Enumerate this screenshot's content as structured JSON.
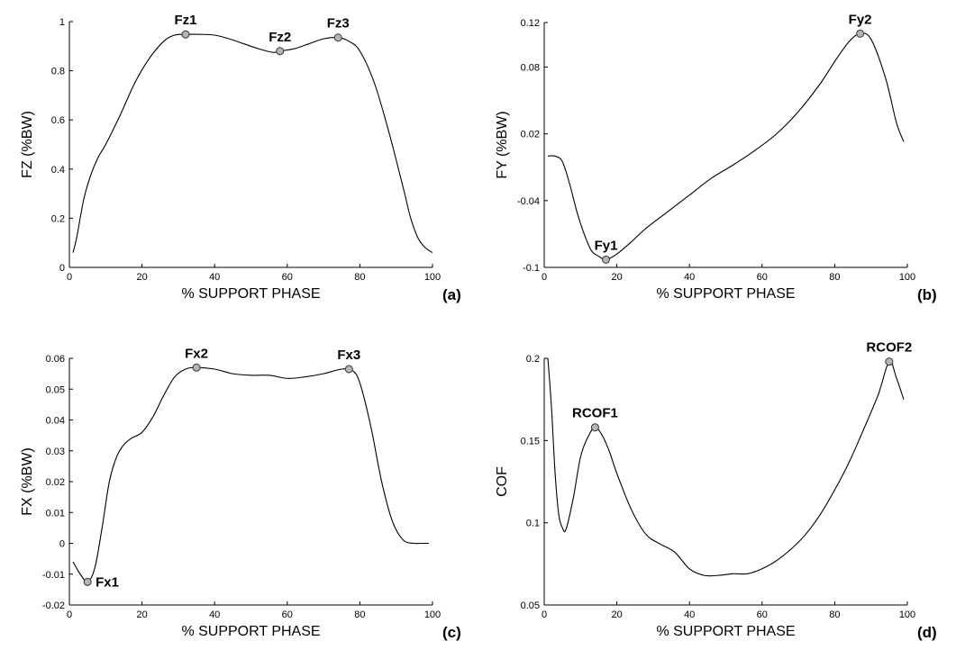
{
  "chart_data": [
    {
      "type": "line",
      "panel": "(a)",
      "xlabel": "% SUPPORT PHASE",
      "ylabel": "FZ (%BW)",
      "xlim": [
        0,
        100
      ],
      "ylim": [
        0,
        1
      ],
      "xticks": [
        0,
        20,
        40,
        60,
        80,
        100
      ],
      "yticks": [
        0,
        0.2,
        0.4,
        0.6,
        0.8,
        1
      ],
      "ytick_labels": [
        "0",
        "0.2",
        "0.4",
        "0.6",
        "0.8",
        "1"
      ],
      "x": [
        1,
        2,
        4,
        6,
        8,
        10,
        14,
        18,
        22,
        26,
        29,
        32,
        36,
        40,
        44,
        48,
        52,
        56,
        58,
        62,
        66,
        70,
        74,
        77,
        80,
        84,
        88,
        92,
        94,
        96,
        98,
        100
      ],
      "y": [
        0.06,
        0.12,
        0.28,
        0.38,
        0.45,
        0.5,
        0.62,
        0.75,
        0.85,
        0.92,
        0.945,
        0.948,
        0.948,
        0.945,
        0.93,
        0.91,
        0.89,
        0.875,
        0.88,
        0.89,
        0.91,
        0.93,
        0.935,
        0.92,
        0.88,
        0.75,
        0.55,
        0.32,
        0.2,
        0.12,
        0.08,
        0.06
      ],
      "annotations": [
        {
          "label": "Fz1",
          "x": 32,
          "y": 0.948,
          "pos": "above"
        },
        {
          "label": "Fz2",
          "x": 58,
          "y": 0.88,
          "pos": "above"
        },
        {
          "label": "Fz3",
          "x": 74,
          "y": 0.935,
          "pos": "above"
        }
      ],
      "grid": false
    },
    {
      "type": "line",
      "panel": "(b)",
      "xlabel": "% SUPPORT PHASE",
      "ylabel": "FY (%BW)",
      "xlim": [
        0,
        100
      ],
      "ylim": [
        -0.1,
        0.12
      ],
      "xticks": [
        0,
        20,
        40,
        60,
        80,
        100
      ],
      "yticks": [
        -0.1,
        -0.04,
        0.02,
        0.08,
        0.12
      ],
      "ytick_labels": [
        "-0.1",
        "-0.04",
        "0.02",
        "0.08",
        "0.12"
      ],
      "x": [
        1,
        3,
        5,
        7,
        9,
        11,
        13,
        15,
        17,
        20,
        24,
        28,
        34,
        40,
        46,
        52,
        58,
        64,
        70,
        76,
        80,
        84,
        87,
        90,
        94,
        97,
        99
      ],
      "y": [
        0.0,
        0.0,
        -0.005,
        -0.025,
        -0.05,
        -0.07,
        -0.085,
        -0.09,
        -0.093,
        -0.088,
        -0.077,
        -0.065,
        -0.05,
        -0.035,
        -0.02,
        -0.008,
        0.005,
        0.02,
        0.04,
        0.065,
        0.085,
        0.103,
        0.11,
        0.105,
        0.07,
        0.03,
        0.013
      ],
      "annotations": [
        {
          "label": "Fy1",
          "x": 17,
          "y": -0.093,
          "pos": "above"
        },
        {
          "label": "Fy2",
          "x": 87,
          "y": 0.11,
          "pos": "above"
        }
      ],
      "grid": false
    },
    {
      "type": "line",
      "panel": "(c)",
      "xlabel": "% SUPPORT PHASE",
      "ylabel": "FX (%BW)",
      "xlim": [
        0,
        100
      ],
      "ylim": [
        -0.02,
        0.06
      ],
      "xticks": [
        0,
        20,
        40,
        60,
        80,
        100
      ],
      "yticks": [
        -0.02,
        -0.01,
        0,
        0.01,
        0.02,
        0.03,
        0.04,
        0.05,
        0.06
      ],
      "ytick_labels": [
        "-0.02",
        "-0.01",
        "0",
        "0.01",
        "0.02",
        "0.03",
        "0.04",
        "0.05",
        "0.06"
      ],
      "x": [
        1,
        3,
        5,
        7,
        9,
        11,
        13,
        15,
        17,
        20,
        23,
        26,
        29,
        32,
        35,
        40,
        45,
        50,
        55,
        60,
        65,
        70,
        75,
        78,
        80,
        83,
        86,
        89,
        92,
        95,
        97,
        99
      ],
      "y": [
        -0.006,
        -0.01,
        -0.0125,
        -0.008,
        0.005,
        0.02,
        0.028,
        0.032,
        0.034,
        0.036,
        0.041,
        0.048,
        0.054,
        0.0565,
        0.057,
        0.0565,
        0.055,
        0.0545,
        0.0545,
        0.0535,
        0.054,
        0.055,
        0.0565,
        0.056,
        0.052,
        0.038,
        0.02,
        0.007,
        0.001,
        0.0,
        0.0,
        0.0
      ],
      "annotations": [
        {
          "label": "Fx1",
          "x": 5,
          "y": -0.0125,
          "pos": "right"
        },
        {
          "label": "Fx2",
          "x": 35,
          "y": 0.057,
          "pos": "above"
        },
        {
          "label": "Fx3",
          "x": 77,
          "y": 0.0565,
          "pos": "above"
        }
      ],
      "grid": false
    },
    {
      "type": "line",
      "panel": "(d)",
      "xlabel": "% SUPPORT PHASE",
      "ylabel": "COF",
      "xlim": [
        0,
        100
      ],
      "ylim": [
        0.05,
        0.2
      ],
      "xticks": [
        0,
        20,
        40,
        60,
        80,
        100
      ],
      "yticks": [
        0.05,
        0.1,
        0.15,
        0.2
      ],
      "ytick_labels": [
        "0.05",
        "0.1",
        "0.15",
        "0.2"
      ],
      "x": [
        1,
        2,
        3,
        4,
        5,
        6,
        8,
        10,
        12,
        14,
        16,
        18,
        20,
        24,
        28,
        32,
        36,
        40,
        44,
        48,
        52,
        56,
        60,
        64,
        68,
        72,
        76,
        80,
        84,
        88,
        92,
        95,
        97,
        99
      ],
      "y": [
        0.2,
        0.17,
        0.13,
        0.105,
        0.097,
        0.096,
        0.115,
        0.14,
        0.152,
        0.158,
        0.153,
        0.143,
        0.13,
        0.108,
        0.093,
        0.087,
        0.082,
        0.072,
        0.068,
        0.068,
        0.069,
        0.069,
        0.072,
        0.077,
        0.084,
        0.093,
        0.105,
        0.12,
        0.137,
        0.157,
        0.178,
        0.198,
        0.188,
        0.175
      ],
      "annotations": [
        {
          "label": "RCOF1",
          "x": 14,
          "y": 0.158,
          "pos": "above"
        },
        {
          "label": "RCOF2",
          "x": 95,
          "y": 0.198,
          "pos": "above"
        }
      ],
      "grid": false
    }
  ]
}
